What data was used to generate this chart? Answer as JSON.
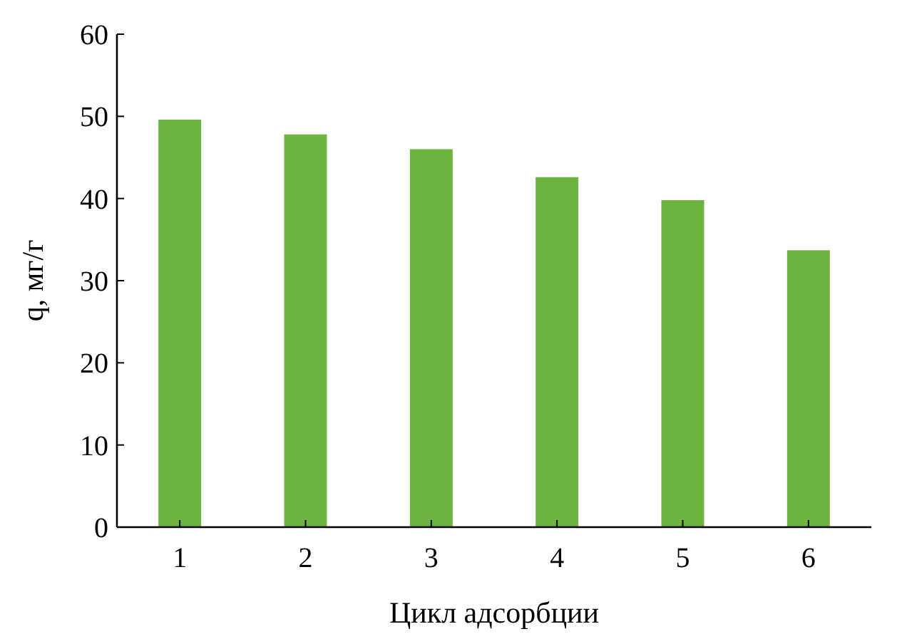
{
  "chart_data": {
    "type": "bar",
    "xlabel": "Цикл адсорбции",
    "ylabel": "q, мг/г",
    "categories": [
      "1",
      "2",
      "3",
      "4",
      "5",
      "6"
    ],
    "values": [
      49.6,
      47.8,
      46.0,
      42.6,
      39.8,
      33.7
    ],
    "color": "#6db33f",
    "ylim": [
      0,
      60
    ],
    "yticks": [
      0,
      10,
      20,
      30,
      40,
      50,
      60
    ],
    "grid": false
  }
}
